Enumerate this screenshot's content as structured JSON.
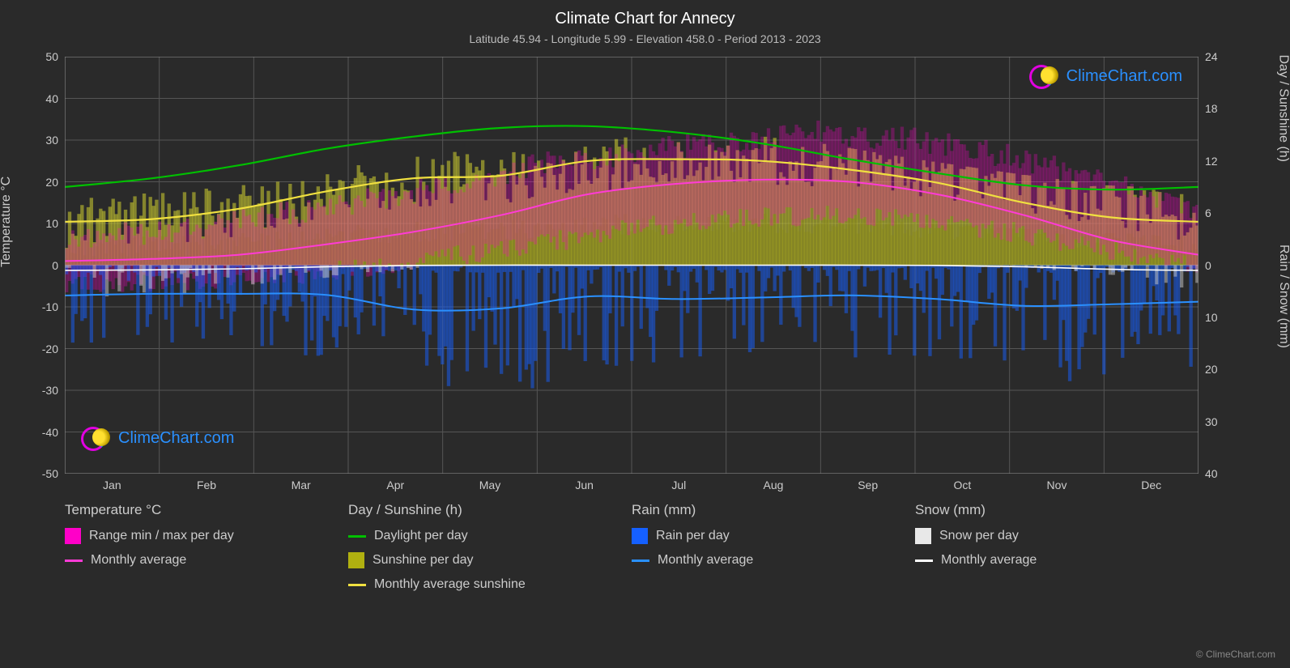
{
  "title": "Climate Chart for Annecy",
  "subtitle": "Latitude 45.94 - Longitude 5.99 - Elevation 458.0 - Period 2013 - 2023",
  "y_left": {
    "label": "Temperature °C",
    "min": -50,
    "max": 50,
    "ticks": [
      50,
      40,
      30,
      20,
      10,
      0,
      -10,
      -20,
      -30,
      -40,
      -50
    ],
    "color": "#cccccc",
    "fontsize": 14
  },
  "y_right_top": {
    "label": "Day / Sunshine (h)",
    "min": 0,
    "max": 24,
    "ticks": [
      24,
      18,
      12,
      6,
      0
    ],
    "pixel_range": [
      0,
      0.5
    ],
    "color": "#cccccc",
    "fontsize": 14
  },
  "y_right_bottom": {
    "label": "Rain / Snow (mm)",
    "min": 0,
    "max": 40,
    "ticks": [
      0,
      10,
      20,
      30,
      40
    ],
    "pixel_range": [
      0.5,
      1.0
    ],
    "color": "#cccccc",
    "fontsize": 14
  },
  "x": {
    "labels": [
      "Jan",
      "Feb",
      "Mar",
      "Apr",
      "May",
      "Jun",
      "Jul",
      "Aug",
      "Sep",
      "Oct",
      "Nov",
      "Dec"
    ],
    "count": 12,
    "color": "#cccccc",
    "fontsize": 14
  },
  "series": {
    "daylight": {
      "color": "#00c000",
      "width": 2.2,
      "values": [
        9.0,
        10.0,
        11.5,
        13.4,
        14.8,
        15.8,
        16.0,
        15.3,
        14.0,
        12.2,
        10.6,
        9.2,
        8.7,
        9.0
      ]
    },
    "sunshine_avg": {
      "color": "#f0e040",
      "width": 2.2,
      "values": [
        5.0,
        5.3,
        6.5,
        8.5,
        10.0,
        10.3,
        12.0,
        12.2,
        12.0,
        11.0,
        9.5,
        7.2,
        5.5,
        5.0
      ]
    },
    "temp_avg": {
      "color": "#ff3bd6",
      "width": 2.0,
      "values": [
        1.0,
        1.5,
        2.5,
        5.0,
        8.0,
        12.0,
        17.0,
        19.5,
        20.5,
        20.0,
        17.0,
        12.0,
        6.0,
        2.5
      ]
    },
    "temp_range": {
      "colors": [
        "#ff00c8",
        "#6b0050"
      ],
      "min": [
        -4,
        -4,
        -3,
        -1,
        2,
        5,
        9,
        11,
        12,
        11,
        8,
        4,
        0,
        -2
      ],
      "max": [
        7,
        8,
        11,
        15,
        19,
        24,
        27,
        30,
        32,
        30,
        26,
        20,
        13,
        9
      ]
    },
    "sunshine_bars": {
      "color_top": "#cfcf30",
      "color_bottom": "#8a8a15",
      "opacity": 0.55
    },
    "rain_avg": {
      "color": "#2a90ff",
      "width": 2.0,
      "values_mm": [
        5.8,
        5.5,
        5.5,
        5.7,
        8.5,
        8.3,
        6.0,
        6.5,
        6.2,
        5.8,
        6.5,
        7.8,
        7.5,
        7.0
      ]
    },
    "rain_bars": {
      "color": "#1560ff",
      "opacity": 0.5
    },
    "snow_avg": {
      "color": "#ffffff",
      "width": 1.6,
      "values_mm": [
        1.0,
        0.9,
        0.7,
        0.3,
        0.05,
        0.0,
        0.0,
        0.0,
        0.0,
        0.0,
        0.05,
        0.3,
        0.8,
        1.0
      ]
    },
    "snow_bars": {
      "color": "#cccccc",
      "opacity": 0.5
    }
  },
  "grid_color": "#555555",
  "grid_color_heavy": "#888888",
  "plot_bg": "#2a2a2a",
  "legend": {
    "col1": {
      "heading": "Temperature °C",
      "items": [
        {
          "type": "block",
          "color": "#ff00c8",
          "label": "Range min / max per day"
        },
        {
          "type": "line",
          "color": "#ff3bd6",
          "label": "Monthly average"
        }
      ]
    },
    "col2": {
      "heading": "Day / Sunshine (h)",
      "items": [
        {
          "type": "line",
          "color": "#00c000",
          "label": "Daylight per day"
        },
        {
          "type": "block",
          "color": "#b0b010",
          "label": "Sunshine per day"
        },
        {
          "type": "line",
          "color": "#f0e040",
          "label": "Monthly average sunshine"
        }
      ]
    },
    "col3": {
      "heading": "Rain (mm)",
      "items": [
        {
          "type": "block",
          "color": "#1560ff",
          "label": "Rain per day"
        },
        {
          "type": "line",
          "color": "#2a90ff",
          "label": "Monthly average"
        }
      ]
    },
    "col4": {
      "heading": "Snow (mm)",
      "items": [
        {
          "type": "block",
          "color": "#e8e8e8",
          "label": "Snow per day"
        },
        {
          "type": "line",
          "color": "#ffffff",
          "label": "Monthly average"
        }
      ]
    }
  },
  "watermark_text": "ClimeChart.com",
  "watermark_color": "#2a90ff",
  "copyright": "© ClimeChart.com"
}
